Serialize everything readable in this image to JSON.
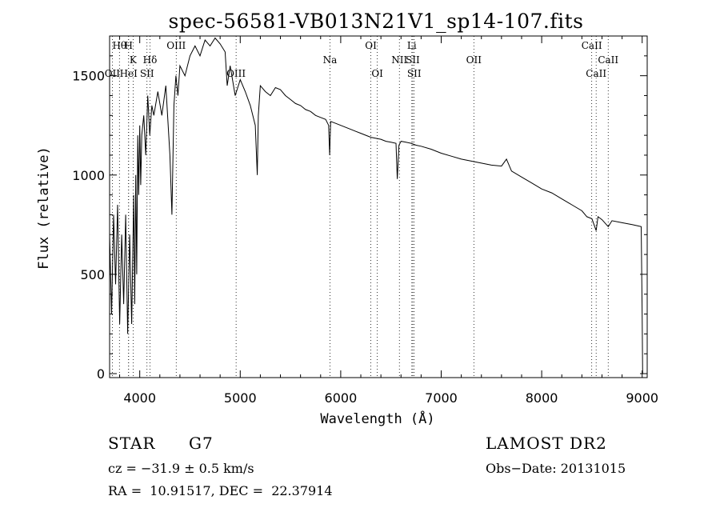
{
  "chart_data": {
    "type": "line",
    "title": "spec-56581-VB013N21V1_sp14-107.fits",
    "xlabel": "Wavelength (Å)",
    "ylabel": "Flux (relative)",
    "xlim": [
      3700,
      9050
    ],
    "ylim": [
      -20,
      1700
    ],
    "x_ticks": [
      4000,
      5000,
      6000,
      7000,
      8000,
      9000
    ],
    "x_tick_labels": [
      "4000",
      "5000",
      "6000",
      "7000",
      "8000",
      "9000"
    ],
    "y_ticks": [
      0,
      500,
      1000,
      1500
    ],
    "y_tick_labels": [
      "0",
      "500",
      "1000",
      "1500"
    ],
    "grid": false,
    "series": [
      {
        "x": [
          3700,
          3720,
          3740,
          3760,
          3780,
          3800,
          3820,
          3840,
          3860,
          3880,
          3900,
          3920,
          3940,
          3950,
          3960,
          3970,
          3980,
          3990,
          4000,
          4010,
          4020,
          4040,
          4060,
          4080,
          4100,
          4120,
          4140,
          4180,
          4220,
          4260,
          4300,
          4320,
          4340,
          4360,
          4380,
          4400,
          4450,
          4500,
          4550,
          4600,
          4650,
          4700,
          4750,
          4800,
          4850,
          4870,
          4900,
          4950,
          5000,
          5050,
          5100,
          5150,
          5170,
          5180,
          5200,
          5250,
          5300,
          5350,
          5400,
          5450,
          5500,
          5550,
          5600,
          5650,
          5700,
          5750,
          5800,
          5850,
          5880,
          5890,
          5900,
          5950,
          6000,
          6050,
          6100,
          6150,
          6200,
          6250,
          6300,
          6350,
          6400,
          6450,
          6500,
          6550,
          6563,
          6580,
          6600,
          6650,
          6700,
          6750,
          6800,
          6900,
          7000,
          7100,
          7200,
          7300,
          7400,
          7500,
          7600,
          7650,
          7700,
          7800,
          7900,
          8000,
          8100,
          8200,
          8300,
          8400,
          8450,
          8500,
          8542,
          8560,
          8600,
          8662,
          8700,
          8800,
          8900,
          8950,
          8990,
          9000,
          9005
        ],
        "y": [
          700,
          300,
          800,
          450,
          850,
          250,
          700,
          350,
          800,
          200,
          700,
          250,
          900,
          350,
          1000,
          500,
          1200,
          900,
          1250,
          950,
          1200,
          1300,
          1100,
          1400,
          1200,
          1350,
          1300,
          1420,
          1300,
          1450,
          1100,
          800,
          1350,
          1500,
          1400,
          1550,
          1500,
          1600,
          1650,
          1600,
          1680,
          1650,
          1690,
          1660,
          1620,
          1450,
          1550,
          1400,
          1480,
          1420,
          1350,
          1250,
          1000,
          1300,
          1450,
          1420,
          1400,
          1440,
          1430,
          1400,
          1380,
          1360,
          1350,
          1330,
          1320,
          1300,
          1290,
          1280,
          1250,
          1100,
          1270,
          1260,
          1250,
          1240,
          1230,
          1220,
          1210,
          1200,
          1190,
          1185,
          1180,
          1170,
          1165,
          1160,
          980,
          1150,
          1170,
          1165,
          1160,
          1150,
          1145,
          1130,
          1110,
          1095,
          1080,
          1070,
          1060,
          1050,
          1045,
          1080,
          1020,
          990,
          960,
          930,
          910,
          880,
          850,
          820,
          790,
          780,
          720,
          790,
          775,
          740,
          770,
          760,
          750,
          745,
          740,
          300,
          0
        ]
      }
    ],
    "lines": [
      {
        "label": "Hθ",
        "x": 3798,
        "row": 0
      },
      {
        "label": "H",
        "x": 3889,
        "row": 0
      },
      {
        "label": "K",
        "x": 3934,
        "row": 1
      },
      {
        "label": "Hδ",
        "x": 4102,
        "row": 1
      },
      {
        "label": "OII",
        "x": 3727,
        "row": 2
      },
      {
        "label": "HeI",
        "x": 3889,
        "row": 2
      },
      {
        "label": "SII",
        "x": 4072,
        "row": 2
      },
      {
        "label": "OIII",
        "x": 4363,
        "row": 0
      },
      {
        "label": "OIII",
        "x": 4959,
        "row": 2
      },
      {
        "label": "Na",
        "x": 5893,
        "row": 1
      },
      {
        "label": "OI",
        "x": 6300,
        "row": 0
      },
      {
        "label": "OI",
        "x": 6364,
        "row": 2
      },
      {
        "label": "Li",
        "x": 6708,
        "row": 0
      },
      {
        "label": "NII",
        "x": 6584,
        "row": 1
      },
      {
        "label": "SII",
        "x": 6717,
        "row": 1
      },
      {
        "label": "SII",
        "x": 6731,
        "row": 2
      },
      {
        "label": "OII",
        "x": 7325,
        "row": 1
      },
      {
        "label": "CaII",
        "x": 8498,
        "row": 0
      },
      {
        "label": "CaII",
        "x": 8662,
        "row": 1
      },
      {
        "label": "CaII",
        "x": 8542,
        "row": 2
      }
    ]
  },
  "info": {
    "object_class": "STAR",
    "subclass": "G7",
    "survey": "LAMOST DR2",
    "redshift": "cz = −31.9 ± 0.5 km/s",
    "obs_date": "Obs−Date: 20131015",
    "coords": "RA =  10.91517, DEC =  22.37914"
  }
}
